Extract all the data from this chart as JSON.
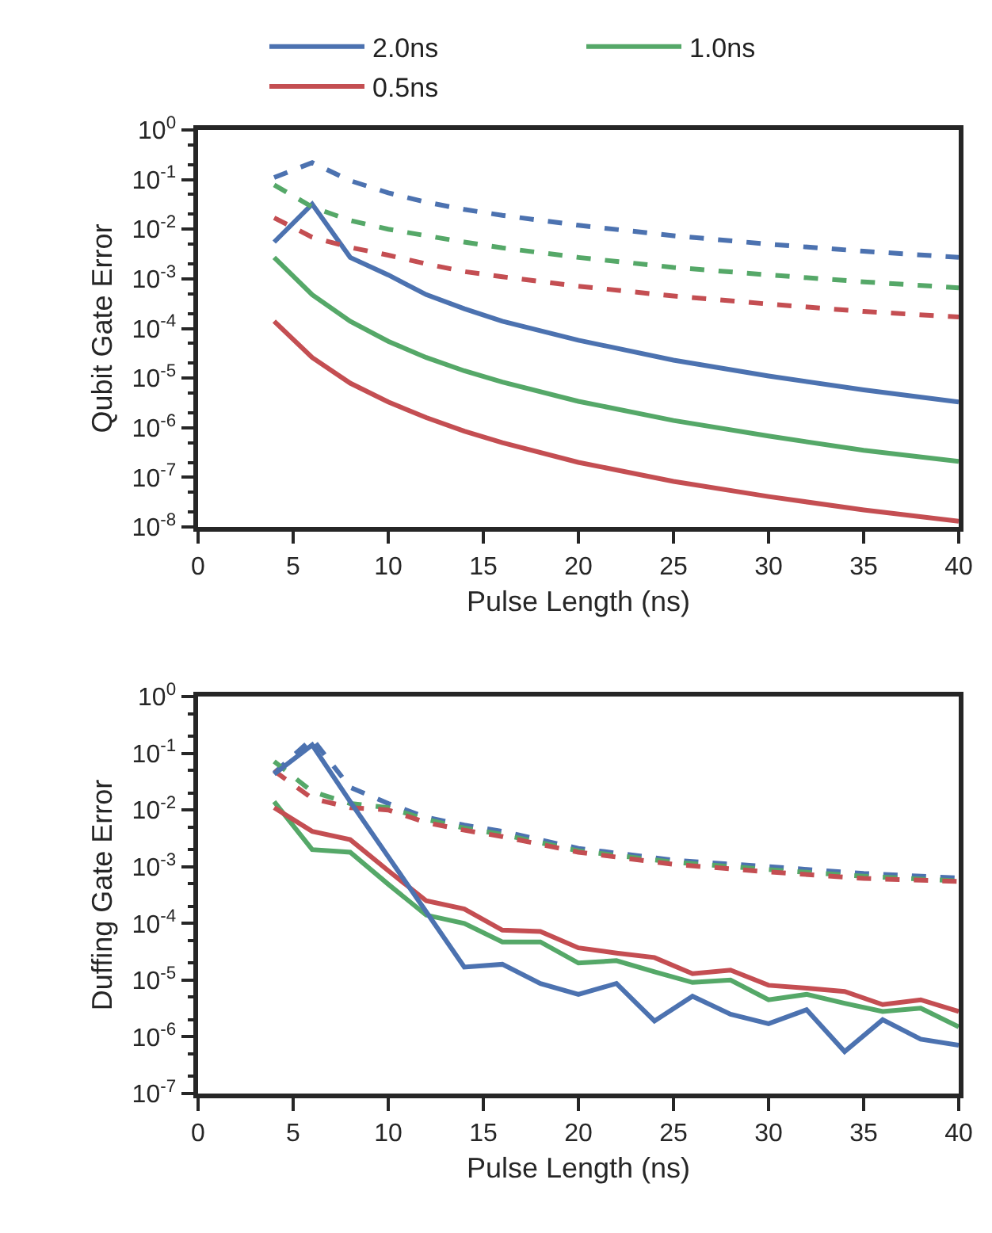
{
  "chart_data": [
    {
      "type": "line",
      "xlabel": "Pulse Length (ns)",
      "ylabel": "Qubit Gate Error",
      "log": "y",
      "legend": "top",
      "xlim": [
        0,
        40
      ],
      "xticks": [
        0,
        5,
        10,
        15,
        20,
        25,
        30,
        35,
        40
      ],
      "ylim": [
        1e-08,
        1
      ],
      "yticks": [
        {
          "value": 1e-08,
          "label": "10$^{-8}$"
        },
        {
          "value": 1e-07,
          "label": "10$^{-7}$"
        },
        {
          "value": 1e-06,
          "label": "10$^{-6}$"
        },
        {
          "value": 1e-05,
          "label": "10$^{-5}$"
        },
        {
          "value": 0.0001,
          "label": "10$^{-4}$"
        },
        {
          "value": 0.001,
          "label": "10$^{-3}$"
        },
        {
          "value": 0.01,
          "label": "10$^{-2}$"
        },
        {
          "value": 0.1,
          "label": "10$^{-1}$"
        },
        {
          "value": 1,
          "label": "10$^{0}$"
        }
      ],
      "series": [
        {
          "name": "2.0ns",
          "color": "#4c72b0",
          "line_style": "solid",
          "x": [
            4,
            6,
            8,
            10,
            12,
            14,
            16,
            20,
            25,
            30,
            35,
            40
          ],
          "values": [
            0.0055,
            0.032,
            0.0027,
            0.0012,
            0.00048,
            0.00025,
            0.00014,
            5.8e-05,
            2.3e-05,
            1.1e-05,
            5.8e-06,
            3.3e-06
          ]
        },
        {
          "name": "1.0ns",
          "color": "#55a868",
          "line_style": "solid",
          "x": [
            4,
            6,
            8,
            10,
            12,
            14,
            16,
            20,
            25,
            30,
            35,
            40
          ],
          "values": [
            0.0027,
            0.00048,
            0.00014,
            5.5e-05,
            2.6e-05,
            1.4e-05,
            8.3e-06,
            3.4e-06,
            1.4e-06,
            6.8e-07,
            3.5e-07,
            2.1e-07
          ]
        },
        {
          "name": "0.5ns",
          "color": "#c44e52",
          "line_style": "solid",
          "x": [
            4,
            6,
            8,
            10,
            12,
            14,
            16,
            20,
            25,
            30,
            35,
            40
          ],
          "values": [
            0.00014,
            2.6e-05,
            7.9e-06,
            3.3e-06,
            1.6e-06,
            8.5e-07,
            5e-07,
            2e-07,
            8.3e-08,
            4.1e-08,
            2.2e-08,
            1.3e-08
          ]
        },
        {
          "color": "#4c72b0",
          "line_style": "dashed",
          "x": [
            4,
            6,
            8,
            10,
            12,
            14,
            16,
            20,
            25,
            30,
            35,
            40
          ],
          "values": [
            0.11,
            0.22,
            0.095,
            0.054,
            0.035,
            0.025,
            0.019,
            0.012,
            0.0074,
            0.005,
            0.0036,
            0.0027
          ]
        },
        {
          "color": "#55a868",
          "line_style": "dashed",
          "x": [
            4,
            6,
            8,
            10,
            12,
            14,
            16,
            20,
            25,
            30,
            35,
            40
          ],
          "values": [
            0.078,
            0.028,
            0.015,
            0.01,
            0.0074,
            0.0055,
            0.0042,
            0.0027,
            0.0017,
            0.0012,
            0.00087,
            0.00066
          ]
        },
        {
          "color": "#c44e52",
          "line_style": "dashed",
          "x": [
            4,
            6,
            8,
            10,
            12,
            14,
            16,
            20,
            25,
            30,
            35,
            40
          ],
          "values": [
            0.017,
            0.0069,
            0.0043,
            0.003,
            0.002,
            0.0014,
            0.0011,
            0.00071,
            0.00045,
            0.00031,
            0.00022,
            0.00017
          ]
        }
      ]
    },
    {
      "type": "line",
      "xlabel": "Pulse Length (ns)",
      "ylabel": "Duffing Gate Error",
      "log": "y",
      "xlim": [
        0,
        40
      ],
      "xticks": [
        0,
        5,
        10,
        15,
        20,
        25,
        30,
        35,
        40
      ],
      "ylim": [
        1e-07,
        1
      ],
      "yticks": [
        {
          "value": 1e-07,
          "label": "10$^{-7}$"
        },
        {
          "value": 1e-06,
          "label": "10$^{-6}$"
        },
        {
          "value": 1e-05,
          "label": "10$^{-5}$"
        },
        {
          "value": 0.0001,
          "label": "10$^{-4}$"
        },
        {
          "value": 0.001,
          "label": "10$^{-3}$"
        },
        {
          "value": 0.01,
          "label": "10$^{-2}$"
        },
        {
          "value": 0.1,
          "label": "10$^{-1}$"
        },
        {
          "value": 1,
          "label": "10$^{0}$"
        }
      ],
      "series": [
        {
          "color": "#4c72b0",
          "line_style": "dashed",
          "x": [
            4,
            6,
            8,
            10,
            12,
            14,
            16,
            20,
            25,
            30,
            35,
            40
          ],
          "values": [
            0.045,
            0.18,
            0.025,
            0.013,
            0.0074,
            0.0054,
            0.0042,
            0.0021,
            0.0013,
            0.001,
            0.00076,
            0.00063
          ]
        },
        {
          "color": "#55a868",
          "line_style": "dashed",
          "x": [
            4,
            6,
            8,
            10,
            12,
            14,
            16,
            20,
            25,
            30,
            35,
            40
          ],
          "values": [
            0.072,
            0.021,
            0.013,
            0.011,
            0.0068,
            0.0048,
            0.0037,
            0.0019,
            0.0012,
            0.00089,
            0.00068,
            0.00056
          ]
        },
        {
          "color": "#c44e52",
          "line_style": "dashed",
          "x": [
            4,
            6,
            8,
            10,
            12,
            14,
            16,
            20,
            25,
            30,
            35,
            40
          ],
          "values": [
            0.049,
            0.016,
            0.011,
            0.01,
            0.006,
            0.0044,
            0.0034,
            0.0018,
            0.0011,
            0.00081,
            0.00062,
            0.00055
          ]
        },
        {
          "color": "#55a868",
          "line_style": "solid",
          "x": [
            4,
            6,
            8,
            10,
            12,
            14,
            16,
            18,
            20,
            22,
            24,
            26,
            28,
            30,
            32,
            34,
            36,
            38,
            40
          ],
          "values": [
            0.014,
            0.002,
            0.0018,
            0.00049,
            0.00014,
            0.0001,
            4.7e-05,
            4.7e-05,
            2e-05,
            2.2e-05,
            1.4e-05,
            9.1e-06,
            1e-05,
            4.5e-06,
            5.6e-06,
            3.9e-06,
            2.8e-06,
            3.2e-06,
            1.5e-06
          ]
        },
        {
          "color": "#c44e52",
          "line_style": "solid",
          "x": [
            4,
            6,
            8,
            10,
            12,
            14,
            16,
            18,
            20,
            22,
            24,
            26,
            28,
            30,
            32,
            34,
            36,
            38,
            40
          ],
          "values": [
            0.011,
            0.0042,
            0.003,
            0.00085,
            0.00025,
            0.00018,
            7.6e-05,
            7.2e-05,
            3.7e-05,
            3e-05,
            2.5e-05,
            1.3e-05,
            1.5e-05,
            8.1e-06,
            7.2e-06,
            6.3e-06,
            3.7e-06,
            4.5e-06,
            2.8e-06
          ]
        },
        {
          "color": "#4c72b0",
          "line_style": "solid",
          "x": [
            4,
            6,
            8,
            10,
            12,
            14,
            16,
            18,
            20,
            22,
            24,
            26,
            28,
            30,
            32,
            34,
            36,
            38,
            40
          ],
          "values": [
            0.043,
            0.14,
            0.014,
            0.0015,
            0.00016,
            1.7e-05,
            1.9e-05,
            8.7e-06,
            5.6e-06,
            8.7e-06,
            1.9e-06,
            5.2e-06,
            2.5e-06,
            1.7e-06,
            3e-06,
            5.5e-07,
            2e-06,
            9.1e-07,
            7.1e-07
          ]
        }
      ]
    }
  ]
}
